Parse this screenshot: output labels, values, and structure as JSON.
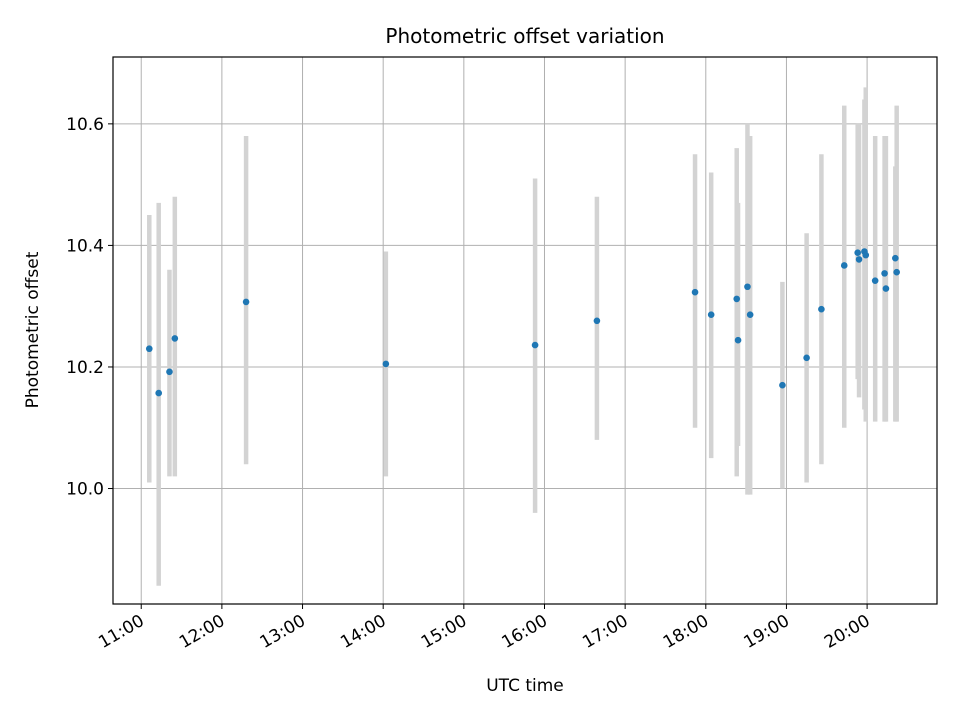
{
  "chart_data": {
    "type": "scatter",
    "title": "Photometric offset variation",
    "xlabel": "UTC time",
    "ylabel": "Photometric offset",
    "x_ticks": [
      "11:00",
      "12:00",
      "13:00",
      "14:00",
      "15:00",
      "16:00",
      "17:00",
      "18:00",
      "19:00",
      "20:00"
    ],
    "y_ticks": [
      "10.0",
      "10.2",
      "10.4",
      "10.6"
    ],
    "xlim": [
      "10:39",
      "20:52"
    ],
    "ylim": [
      9.81,
      10.71
    ],
    "grid": true,
    "colors": {
      "point": "#1f77b4",
      "errorbar": "#d3d3d3",
      "grid": "#b0b0b0"
    },
    "series": [
      {
        "x": [
          "11:06",
          "11:13",
          "11:21",
          "11:25",
          "12:18",
          "14:02",
          "15:53",
          "16:39",
          "17:52",
          "18:04",
          "18:23",
          "18:24",
          "18:31",
          "18:33",
          "18:57",
          "19:15",
          "19:26",
          "19:43",
          "19:53",
          "19:54",
          "19:58",
          "19:59",
          "20:06",
          "20:13",
          "20:14",
          "20:21",
          "20:22"
        ],
        "y": [
          10.23,
          10.157,
          10.192,
          10.247,
          10.307,
          10.205,
          10.236,
          10.276,
          10.323,
          10.286,
          10.312,
          10.244,
          10.332,
          10.286,
          10.17,
          10.215,
          10.295,
          10.367,
          10.388,
          10.377,
          10.39,
          10.384,
          10.342,
          10.354,
          10.329,
          10.379,
          10.356
        ],
        "yerr_low": [
          10.01,
          9.84,
          10.02,
          10.02,
          10.04,
          10.02,
          9.96,
          10.08,
          10.1,
          10.05,
          10.02,
          10.07,
          9.99,
          9.99,
          10.0,
          10.01,
          10.04,
          10.1,
          10.18,
          10.15,
          10.13,
          10.11,
          10.11,
          10.11,
          10.11,
          10.11,
          10.11
        ],
        "yerr_high": [
          10.45,
          10.47,
          10.36,
          10.48,
          10.58,
          10.39,
          10.51,
          10.48,
          10.55,
          10.52,
          10.56,
          10.47,
          10.6,
          10.58,
          10.34,
          10.42,
          10.55,
          10.63,
          10.6,
          10.6,
          10.64,
          10.66,
          10.58,
          10.58,
          10.58,
          10.53,
          10.63
        ]
      }
    ]
  }
}
